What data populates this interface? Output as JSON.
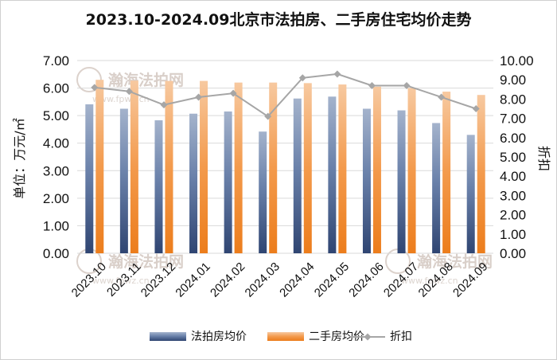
{
  "chart_data": {
    "type": "bar",
    "title": "2023.10-2024.09北京市法拍房、二手房住宅均价走势",
    "ylabel": "单位：万元/㎡",
    "y2label": "折扣",
    "ylim": [
      0,
      7
    ],
    "y2lim": [
      0,
      10
    ],
    "yticks": [
      "0.00",
      "1.00",
      "2.00",
      "3.00",
      "4.00",
      "5.00",
      "6.00",
      "7.00"
    ],
    "y2ticks": [
      "0.00",
      "1.00",
      "2.00",
      "3.00",
      "4.00",
      "5.00",
      "6.00",
      "7.00",
      "8.00",
      "9.00",
      "10.00"
    ],
    "grid": true,
    "legend_position": "bottom",
    "categories": [
      "2023.10",
      "2023.11",
      "2023.12",
      "2024.01",
      "2024.02",
      "2024.03",
      "2024.04",
      "2024.05",
      "2024.06",
      "2024.07",
      "2024.08",
      "2024.09"
    ],
    "series": [
      {
        "name": "法拍房均价",
        "type": "bar",
        "axis": "left",
        "color": "#3f5b8c",
        "values": [
          5.41,
          5.25,
          4.83,
          5.07,
          5.15,
          4.42,
          5.62,
          5.69,
          5.25,
          5.19,
          4.73,
          4.3
        ]
      },
      {
        "name": "二手房均价",
        "type": "bar",
        "axis": "left",
        "color": "#f08a30",
        "values": [
          6.3,
          6.27,
          6.26,
          6.26,
          6.2,
          6.2,
          6.18,
          6.13,
          6.05,
          6.0,
          5.87,
          5.75
        ]
      },
      {
        "name": "折扣",
        "type": "line",
        "axis": "right",
        "color": "#a6a6a6",
        "values": [
          8.6,
          8.4,
          7.7,
          8.1,
          8.3,
          7.1,
          9.1,
          9.3,
          8.7,
          8.7,
          8.1,
          7.5
        ]
      }
    ]
  },
  "watermark": {
    "text": "瀚海法拍网",
    "url": "www.fpwz.cn"
  }
}
